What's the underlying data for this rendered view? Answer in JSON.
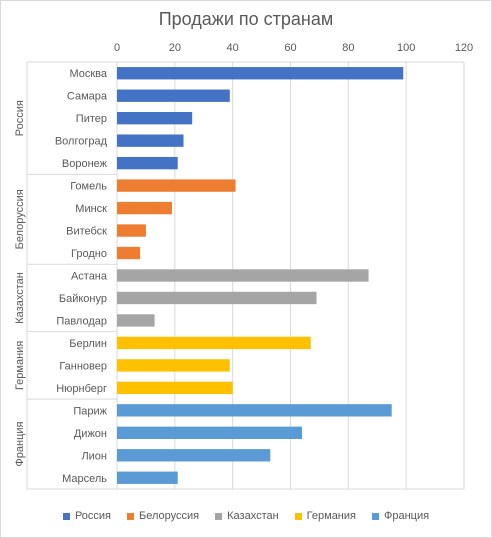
{
  "chart_data": {
    "type": "bar",
    "orientation": "horizontal",
    "title": "Продажи по странам",
    "xlabel": "",
    "ylabel": "",
    "xlim": [
      0,
      120
    ],
    "x_ticks": [
      0,
      20,
      40,
      60,
      80,
      100,
      120
    ],
    "x_axis_position": "top",
    "grid": true,
    "legend_position": "bottom",
    "groups": [
      {
        "name": "Россия",
        "color": "#4472C4",
        "categories": [
          "Москва",
          "Самара",
          "Питер",
          "Волгоград",
          "Воронеж"
        ],
        "values": [
          99,
          39,
          26,
          23,
          21
        ]
      },
      {
        "name": "Белоруссия",
        "color": "#ED7D31",
        "categories": [
          "Гомель",
          "Минск",
          "Витебск",
          "Гродно"
        ],
        "values": [
          41,
          19,
          10,
          8
        ]
      },
      {
        "name": "Казахстан",
        "color": "#A5A5A5",
        "categories": [
          "Астана",
          "Байконур",
          "Павлодар"
        ],
        "values": [
          87,
          69,
          13
        ]
      },
      {
        "name": "Германия",
        "color": "#FFC000",
        "categories": [
          "Берлин",
          "Ганновер",
          "Нюрнберг"
        ],
        "values": [
          67,
          39,
          40
        ]
      },
      {
        "name": "Франция",
        "color": "#5B9BD5",
        "categories": [
          "Париж",
          "Дижон",
          "Лион",
          "Марсель"
        ],
        "values": [
          95,
          64,
          53,
          21
        ]
      }
    ]
  }
}
